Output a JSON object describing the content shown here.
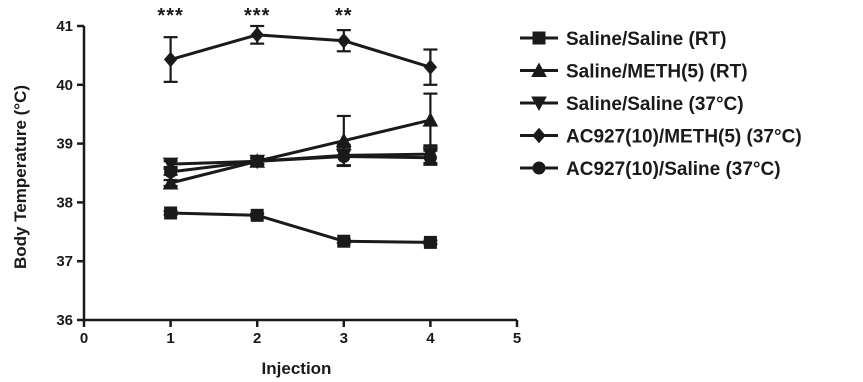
{
  "chart_data": {
    "type": "line",
    "title": "",
    "xlabel": "Injection",
    "ylabel": "Body Temperature (°C)",
    "xlim": [
      0,
      5
    ],
    "ylim": [
      36,
      41
    ],
    "x_ticks": [
      0,
      1,
      2,
      3,
      4,
      5
    ],
    "y_ticks": [
      36,
      37,
      38,
      39,
      40,
      41
    ],
    "grid": false,
    "legend_position": "right",
    "line_color": "#1a1a1a",
    "series": [
      {
        "name": "Saline/Saline (RT)",
        "marker": "square",
        "x": [
          1,
          2,
          3,
          4
        ],
        "y": [
          37.82,
          37.78,
          37.34,
          37.32
        ],
        "err": [
          0.03,
          0.03,
          0.03,
          0.03
        ]
      },
      {
        "name": "Saline/METH(5) (RT)",
        "marker": "triangle-up",
        "x": [
          1,
          2,
          3,
          4
        ],
        "y": [
          38.33,
          38.7,
          39.05,
          39.4
        ],
        "err": [
          0.05,
          0.05,
          0.42,
          0.45
        ]
      },
      {
        "name": "Saline/Saline (37°C)",
        "marker": "triangle-down",
        "x": [
          1,
          2,
          3,
          4
        ],
        "y": [
          38.65,
          38.7,
          38.8,
          38.82
        ],
        "err": [
          0.05,
          0.05,
          0.18,
          0.15
        ]
      },
      {
        "name": "AC927(10)/METH(5) (37°C)",
        "marker": "diamond",
        "x": [
          1,
          2,
          3,
          4
        ],
        "y": [
          40.43,
          40.85,
          40.75,
          40.3
        ],
        "err": [
          0.38,
          0.15,
          0.18,
          0.3
        ]
      },
      {
        "name": "AC927(10)/Saline (37°C)",
        "marker": "circle",
        "x": [
          1,
          2,
          3,
          4
        ],
        "y": [
          38.52,
          38.7,
          38.78,
          38.76
        ],
        "err": [
          0.05,
          0.05,
          0.15,
          0.12
        ]
      }
    ],
    "annotations": [
      {
        "x": 1,
        "text": "***"
      },
      {
        "x": 2,
        "text": "***"
      },
      {
        "x": 3,
        "text": "**"
      }
    ]
  }
}
